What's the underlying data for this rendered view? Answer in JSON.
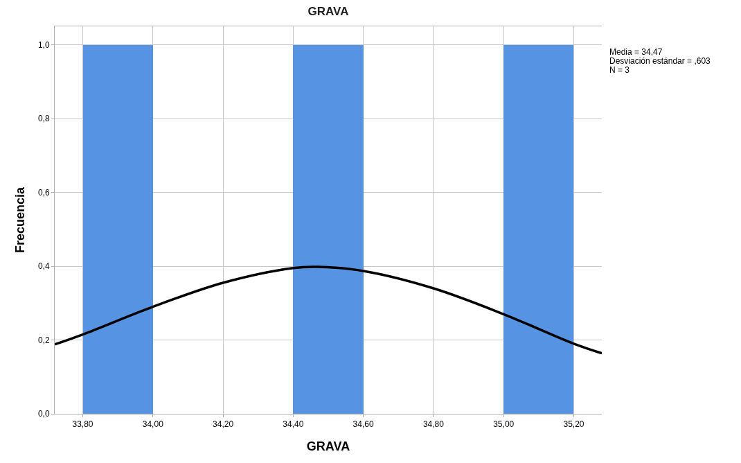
{
  "chart_data": {
    "type": "histogram",
    "title": "GRAVA",
    "xlabel": "GRAVA",
    "ylabel": "Frecuencia",
    "bins": [
      33.8,
      34.0,
      34.2,
      34.4,
      34.6,
      34.8,
      35.0,
      35.2
    ],
    "values": [
      1,
      0,
      0,
      1,
      0,
      0,
      1
    ],
    "color": "#5694e3",
    "series": [
      {
        "type": "line",
        "color": "#000000",
        "x": [
          33.72,
          33.8,
          34.0,
          34.2,
          34.4,
          34.47,
          34.6,
          34.8,
          35.0,
          35.2,
          35.28
        ],
        "values": [
          0.188,
          0.215,
          0.29,
          0.355,
          0.395,
          0.398,
          0.387,
          0.34,
          0.27,
          0.19,
          0.164
        ]
      }
    ],
    "xlim": [
      33.72,
      35.28
    ],
    "xticks": [
      {
        "value": 33.8,
        "label": "33,80"
      },
      {
        "value": 34.0,
        "label": "34,00"
      },
      {
        "value": 34.2,
        "label": "34,20"
      },
      {
        "value": 34.4,
        "label": "34,40"
      },
      {
        "value": 34.6,
        "label": "34,60"
      },
      {
        "value": 34.8,
        "label": "34,80"
      },
      {
        "value": 35.0,
        "label": "35,00"
      },
      {
        "value": 35.2,
        "label": "35,20"
      }
    ],
    "ylim": [
      0,
      1.05
    ],
    "yticks": [
      {
        "value": 0,
        "label": "0,0"
      },
      {
        "value": 0.2,
        "label": "0,2"
      },
      {
        "value": 0.4,
        "label": "0,4"
      },
      {
        "value": 0.6,
        "label": "0,6"
      },
      {
        "value": 0.8,
        "label": "0,8"
      },
      {
        "value": 1.0,
        "label": "1,0"
      }
    ],
    "grid": true,
    "annotations": [
      "Media = 34,47",
      "Desviación estándar = ,603",
      "N = 3"
    ]
  }
}
